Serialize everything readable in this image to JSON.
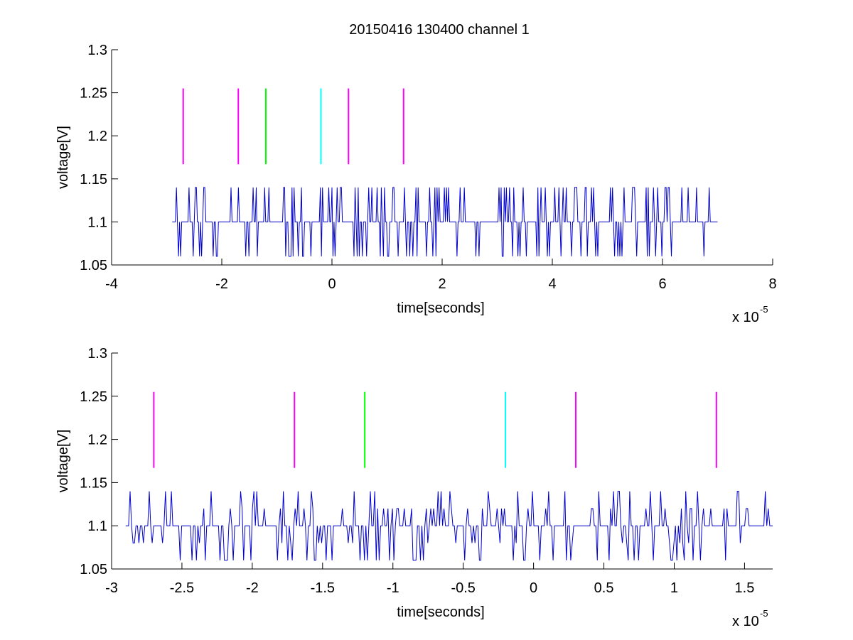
{
  "figure": {
    "title": "20150416 130400 channel 1"
  },
  "chart_data": [
    {
      "type": "line",
      "title": "20150416 130400 channel 1",
      "xlabel": "time[seconds]",
      "ylabel": "voltage[V]",
      "x_exponent_label": "x 10",
      "x_exponent_power": "-5",
      "xlim": [
        -4,
        8
      ],
      "ylim": [
        1.05,
        1.3
      ],
      "xticks": [
        -4,
        -2,
        0,
        2,
        4,
        6,
        8
      ],
      "xtick_labels": [
        "-4",
        "-2",
        "0",
        "2",
        "4",
        "6",
        "8"
      ],
      "yticks": [
        1.05,
        1.1,
        1.15,
        1.2,
        1.25,
        1.3
      ],
      "ytick_labels": [
        "1.05",
        "1.1",
        "1.15",
        "1.2",
        "1.25",
        "1.3"
      ],
      "grid": false,
      "series": [
        {
          "color": "#0000cc",
          "x_range": [
            -2.9,
            7.0
          ],
          "levels": [
            1.06,
            1.1,
            1.14
          ],
          "baseline": 1.1,
          "samples": 520,
          "seed": 11
        }
      ],
      "markers": [
        {
          "x": -2.7,
          "y1": 1.167,
          "y2": 1.255,
          "color": "#ff00ff"
        },
        {
          "x": -1.7,
          "y1": 1.167,
          "y2": 1.255,
          "color": "#ff00ff"
        },
        {
          "x": -1.2,
          "y1": 1.167,
          "y2": 1.255,
          "color": "#00ff00"
        },
        {
          "x": -0.2,
          "y1": 1.167,
          "y2": 1.255,
          "color": "#00ffff"
        },
        {
          "x": 0.3,
          "y1": 1.167,
          "y2": 1.255,
          "color": "#ff00ff"
        },
        {
          "x": 1.3,
          "y1": 1.167,
          "y2": 1.255,
          "color": "#ff00ff"
        }
      ]
    },
    {
      "type": "line",
      "title": "",
      "xlabel": "time[seconds]",
      "ylabel": "voltage[V]",
      "x_exponent_label": "x 10",
      "x_exponent_power": "-5",
      "xlim": [
        -3.0,
        1.7
      ],
      "ylim": [
        1.05,
        1.3
      ],
      "xticks": [
        -3,
        -2.5,
        -2,
        -1.5,
        -1,
        -0.5,
        0,
        0.5,
        1,
        1.5
      ],
      "xtick_labels": [
        "-3",
        "-2.5",
        "-2",
        "-1.5",
        "-1",
        "-0.5",
        "0",
        "0.5",
        "1",
        "1.5"
      ],
      "yticks": [
        1.05,
        1.1,
        1.15,
        1.2,
        1.25,
        1.3
      ],
      "ytick_labels": [
        "1.05",
        "1.1",
        "1.15",
        "1.2",
        "1.25",
        "1.3"
      ],
      "grid": false,
      "series": [
        {
          "color": "#0000cc",
          "x_range": [
            -2.9,
            1.7
          ],
          "levels": [
            1.06,
            1.08,
            1.1,
            1.12,
            1.14
          ],
          "baseline": 1.1,
          "samples": 440,
          "seed": 23
        }
      ],
      "markers": [
        {
          "x": -2.7,
          "y1": 1.167,
          "y2": 1.255,
          "color": "#ff00ff"
        },
        {
          "x": -1.7,
          "y1": 1.167,
          "y2": 1.255,
          "color": "#ff00ff"
        },
        {
          "x": -1.2,
          "y1": 1.167,
          "y2": 1.255,
          "color": "#00ff00"
        },
        {
          "x": -0.2,
          "y1": 1.167,
          "y2": 1.255,
          "color": "#00ffff"
        },
        {
          "x": 0.3,
          "y1": 1.167,
          "y2": 1.255,
          "color": "#ff00ff"
        },
        {
          "x": 1.3,
          "y1": 1.167,
          "y2": 1.255,
          "color": "#ff00ff"
        }
      ]
    }
  ]
}
